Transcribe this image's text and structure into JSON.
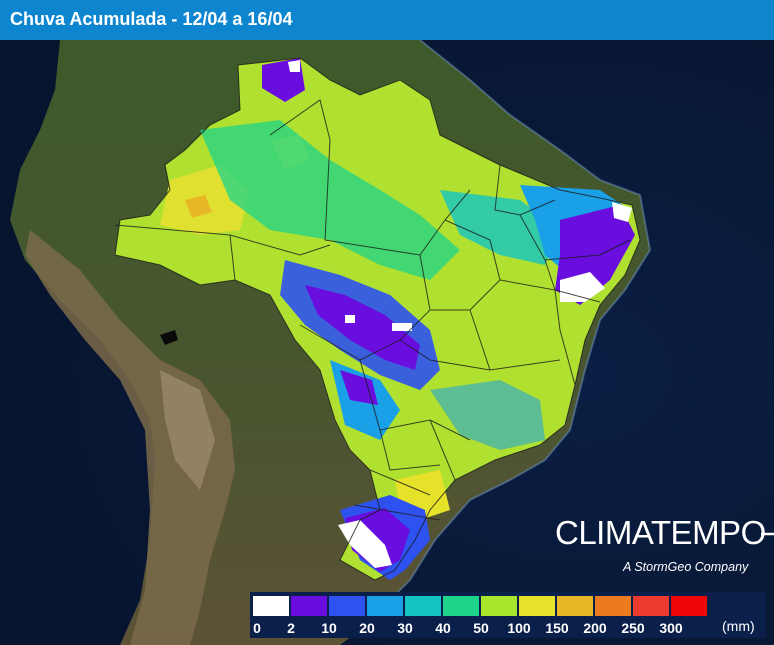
{
  "title": "Chuva Acumulada - 12/04 a 16/04",
  "brand": {
    "name": "CLIMATEMPO",
    "tagline": "A StormGeo Company"
  },
  "legend": {
    "unit": "(mm)",
    "colors": [
      "#ffffff",
      "#6a0ee0",
      "#2e52f0",
      "#1aa0e6",
      "#14c4c4",
      "#1ed48a",
      "#a8e62e",
      "#e6e22a",
      "#e8b626",
      "#ec7a1e",
      "#ec3a2e",
      "#ee0606"
    ],
    "labels": [
      "0",
      "2",
      "10",
      "20",
      "30",
      "40",
      "50",
      "100",
      "150",
      "200",
      "250",
      "300"
    ]
  },
  "colors": {
    "title_bar": "#0e86cf",
    "ocean": "#0b2a5a",
    "land": "#4d5a2e"
  }
}
